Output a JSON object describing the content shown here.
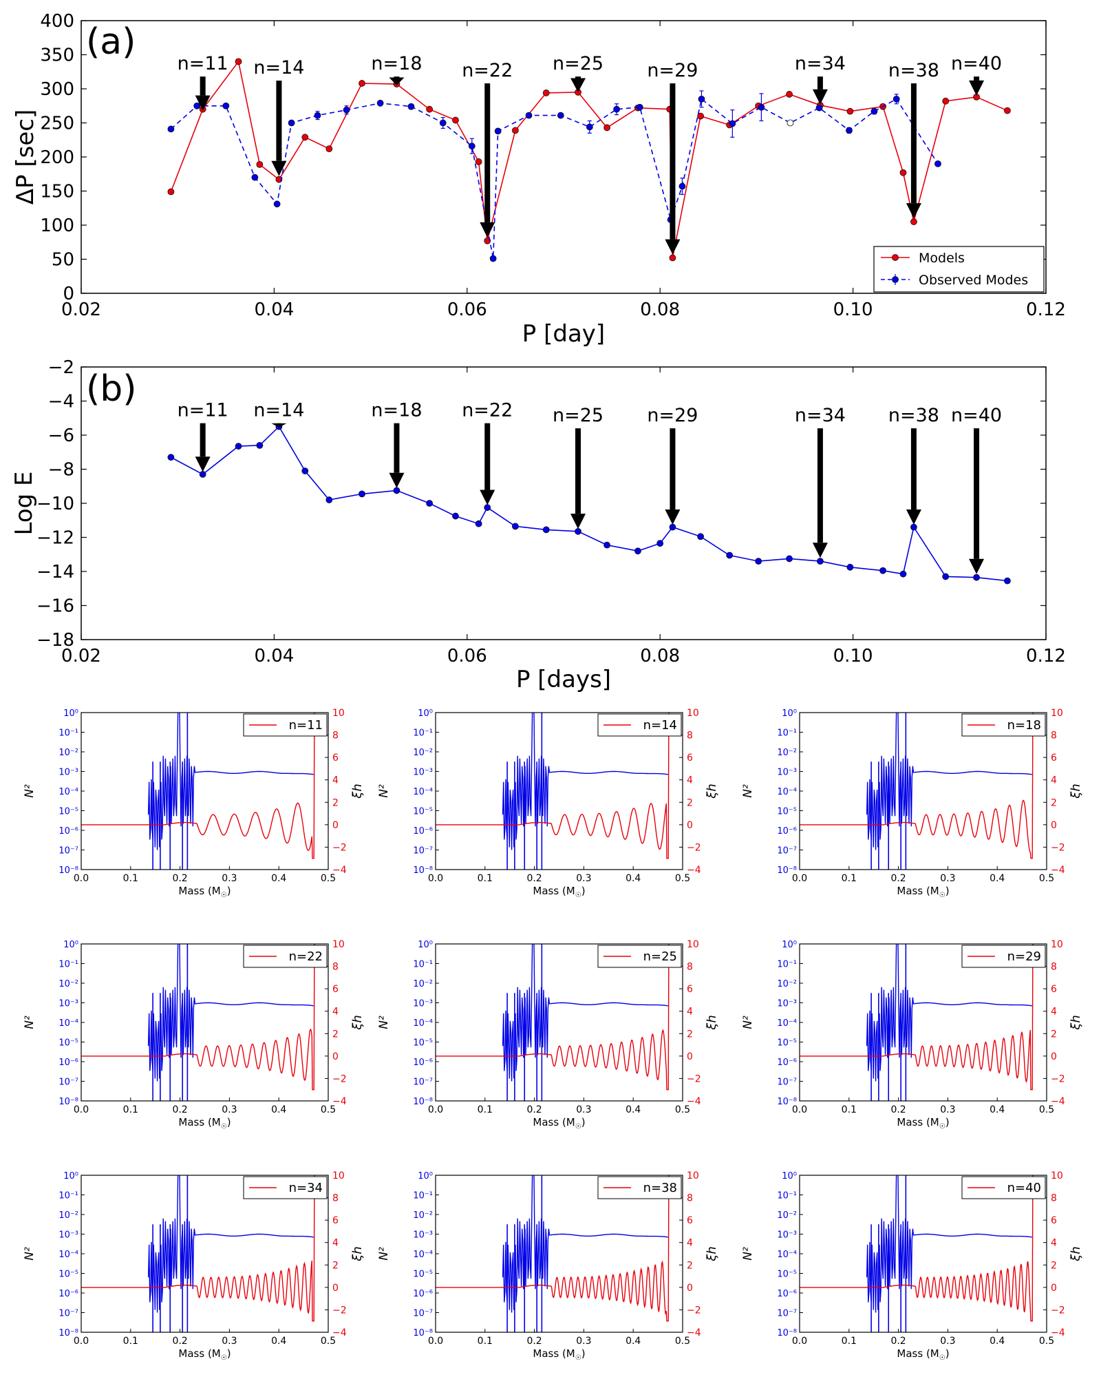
{
  "colors": {
    "models": "#e8000b",
    "observed": "#0000e6",
    "axes": "#000000",
    "arrow": "#000000"
  },
  "chart_data": [
    {
      "type": "line",
      "panel_label": "(a)",
      "xlabel": "P [day]",
      "ylabel": "ΔP [sec]",
      "xlim": [
        0.02,
        0.12
      ],
      "ylim": [
        0,
        400
      ],
      "xticks": [
        "0.02",
        "0.04",
        "0.06",
        "0.08",
        "0.10",
        "0.12"
      ],
      "yticks": [
        "0",
        "50",
        "100",
        "150",
        "200",
        "250",
        "300",
        "350",
        "400"
      ],
      "legend_position": "lower-right",
      "series": [
        {
          "name": "Models",
          "style": "solid",
          "x": [
            0.0293,
            0.0326,
            0.0363,
            0.0385,
            0.0405,
            0.0432,
            0.0457,
            0.0491,
            0.0527,
            0.0561,
            0.0588,
            0.0612,
            0.0621,
            0.065,
            0.0682,
            0.0715,
            0.0745,
            0.0777,
            0.081,
            0.0813,
            0.0842,
            0.0872,
            0.0902,
            0.0934,
            0.0966,
            0.0997,
            0.1031,
            0.1052,
            0.1063,
            0.1096,
            0.1128,
            0.116
          ],
          "y": [
            149,
            270,
            340,
            189,
            167,
            229,
            212,
            308,
            307,
            270,
            254,
            193,
            77,
            239,
            294,
            295,
            243,
            272,
            270,
            52,
            260,
            247,
            275,
            292,
            276,
            267,
            274,
            177,
            105,
            282,
            288,
            268
          ]
        },
        {
          "name": "Observed Modes",
          "style": "dashed",
          "x": [
            0.0293,
            0.032,
            0.035,
            0.038,
            0.0403,
            0.0418,
            0.0445,
            0.0475,
            0.051,
            0.0542,
            0.0575,
            0.0605,
            0.0627,
            0.0632,
            0.0664,
            0.0697,
            0.0727,
            0.0755,
            0.0779,
            0.0811,
            0.0823,
            0.0843,
            0.0875,
            0.0905,
            0.0935,
            0.0965,
            0.0996,
            0.1022,
            0.1045,
            0.1088
          ],
          "y": [
            241,
            275,
            275,
            170,
            131,
            250,
            261,
            269,
            279,
            274,
            250,
            216,
            51,
            238,
            261,
            261,
            244,
            270,
            273,
            108,
            157,
            285,
            249,
            273,
            250,
            272,
            239,
            267,
            285,
            190
          ],
          "err": [
            0,
            0,
            0,
            0,
            0,
            0,
            6,
            6,
            0,
            0,
            8,
            11,
            3,
            0,
            0,
            0,
            9,
            8,
            0,
            0,
            12,
            12,
            20,
            20,
            0,
            0,
            4,
            4,
            7,
            0
          ],
          "open_marker_index": [
            24
          ]
        }
      ],
      "arrows": [
        {
          "label": "n=11",
          "x": 0.0326,
          "y_top": 318,
          "y_tip": 268,
          "label_x": 0.0327
        },
        {
          "label": "n=14",
          "x": 0.0405,
          "y_top": 312,
          "y_tip": 172,
          "label_x": 0.0405
        },
        {
          "label": "n=18",
          "x": 0.0527,
          "y_top": 318,
          "y_tip": 305,
          "label_x": 0.0527
        },
        {
          "label": "n=22",
          "x": 0.0621,
          "y_top": 308,
          "y_tip": 82,
          "label_x": 0.0621
        },
        {
          "label": "n=25",
          "x": 0.0715,
          "y_top": 318,
          "y_tip": 295,
          "label_x": 0.0715
        },
        {
          "label": "n=29",
          "x": 0.0813,
          "y_top": 308,
          "y_tip": 57,
          "label_x": 0.0813
        },
        {
          "label": "n=34",
          "x": 0.0966,
          "y_top": 318,
          "y_tip": 277,
          "label_x": 0.0966
        },
        {
          "label": "n=38",
          "x": 0.1063,
          "y_top": 308,
          "y_tip": 110,
          "label_x": 0.1063
        },
        {
          "label": "n=40",
          "x": 0.1128,
          "y_top": 318,
          "y_tip": 290,
          "label_x": 0.1128
        }
      ]
    },
    {
      "type": "line",
      "panel_label": "(b)",
      "xlabel": "P [days]",
      "ylabel": "Log E",
      "xlim": [
        0.02,
        0.12
      ],
      "ylim": [
        -18,
        -2
      ],
      "xticks": [
        "0.02",
        "0.04",
        "0.06",
        "0.08",
        "0.10",
        "0.12"
      ],
      "yticks": [
        "−18",
        "−16",
        "−14",
        "−12",
        "−10",
        "−8",
        "−6",
        "−4",
        "−2"
      ],
      "series": [
        {
          "name": "Log E",
          "style": "solid",
          "x": [
            0.0293,
            0.0326,
            0.0363,
            0.0385,
            0.0405,
            0.0432,
            0.0457,
            0.0491,
            0.0527,
            0.0561,
            0.0588,
            0.0612,
            0.0621,
            0.065,
            0.0682,
            0.0715,
            0.0745,
            0.0777,
            0.08,
            0.0813,
            0.0842,
            0.0872,
            0.0902,
            0.0934,
            0.0966,
            0.0997,
            0.1031,
            0.1052,
            0.1063,
            0.1096,
            0.1128,
            0.116
          ],
          "y": [
            -7.3,
            -8.3,
            -6.65,
            -6.6,
            -5.5,
            -8.1,
            -9.8,
            -9.45,
            -9.25,
            -10.0,
            -10.75,
            -11.2,
            -10.25,
            -11.35,
            -11.55,
            -11.65,
            -12.45,
            -12.8,
            -12.35,
            -11.4,
            -11.95,
            -13.05,
            -13.4,
            -13.25,
            -13.4,
            -13.75,
            -13.95,
            -14.15,
            -11.4,
            -14.3,
            -14.35,
            -14.55
          ]
        }
      ],
      "arrows": [
        {
          "label": "n=11",
          "x": 0.0326,
          "y_top": -5.3,
          "y_tip": -8.15
        },
        {
          "label": "n=14",
          "x": 0.0405,
          "y_top": -5.3,
          "y_tip": -5.55
        },
        {
          "label": "n=18",
          "x": 0.0527,
          "y_top": -5.3,
          "y_tip": -9.1
        },
        {
          "label": "n=22",
          "x": 0.0621,
          "y_top": -5.3,
          "y_tip": -10.1
        },
        {
          "label": "n=25",
          "x": 0.0715,
          "y_top": -5.6,
          "y_tip": -11.5
        },
        {
          "label": "n=29",
          "x": 0.0813,
          "y_top": -5.6,
          "y_tip": -11.25
        },
        {
          "label": "n=34",
          "x": 0.0966,
          "y_top": -5.6,
          "y_tip": -13.2
        },
        {
          "label": "n=38",
          "x": 0.1063,
          "y_top": -5.6,
          "y_tip": -11.25
        },
        {
          "label": "n=40",
          "x": 0.1128,
          "y_top": -5.6,
          "y_tip": -14.15
        }
      ]
    }
  ],
  "small_panels": {
    "xlabel": "Mass (M",
    "xlabel_sun": "☉",
    "ylabel_left": "N²",
    "ylabel_right": "ξh",
    "xlim": [
      0.0,
      0.5
    ],
    "xticks": [
      "0.0",
      "0.1",
      "0.2",
      "0.3",
      "0.4",
      "0.5"
    ],
    "ylim_right": [
      -4,
      10
    ],
    "yticks_right": [
      "−4",
      "−2",
      "0",
      "2",
      "4",
      "6",
      "8",
      "10"
    ],
    "ylim_left_log10": [
      -8,
      0
    ],
    "yticks_left": [
      "10⁻⁸",
      "10⁻⁷",
      "10⁻⁶",
      "10⁻⁵",
      "10⁻⁴",
      "10⁻³",
      "10⁻²",
      "10⁻¹",
      "10⁰"
    ],
    "panels": [
      {
        "legend": "n=11",
        "n": 11
      },
      {
        "legend": "n=14",
        "n": 14
      },
      {
        "legend": "n=18",
        "n": 18
      },
      {
        "legend": "n=22",
        "n": 22
      },
      {
        "legend": "n=25",
        "n": 25
      },
      {
        "legend": "n=29",
        "n": 29
      },
      {
        "legend": "n=34",
        "n": 34
      },
      {
        "legend": "n=38",
        "n": 38
      },
      {
        "legend": "n=40",
        "n": 40
      }
    ]
  }
}
